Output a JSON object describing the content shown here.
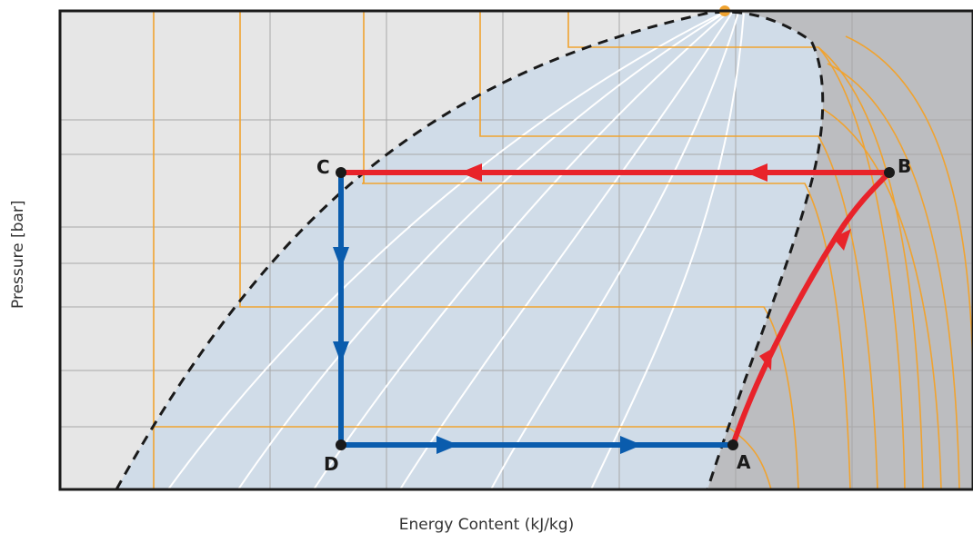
{
  "diagram": {
    "xlabel": "Energy Content (kJ/kg)",
    "ylabel": "Pressure [bar]",
    "points": [
      {
        "id": "A",
        "label": "A"
      },
      {
        "id": "B",
        "label": "B"
      },
      {
        "id": "C",
        "label": "C"
      },
      {
        "id": "D",
        "label": "D"
      }
    ],
    "colors": {
      "compression": "#e8232a",
      "condensation": "#e8232a",
      "expansion": "#0a5cad",
      "evaporation": "#0a5cad",
      "isotherms": "#f0a330",
      "quality_lines": "#ffffff",
      "dome": "#1a1a1a",
      "critical_point": "#f0a330",
      "two_phase_region": "#d0dce8",
      "subcooled_region": "#e6e6e6",
      "superheated_region": "#bcbdc0",
      "grid": "#a8a8a8"
    }
  }
}
